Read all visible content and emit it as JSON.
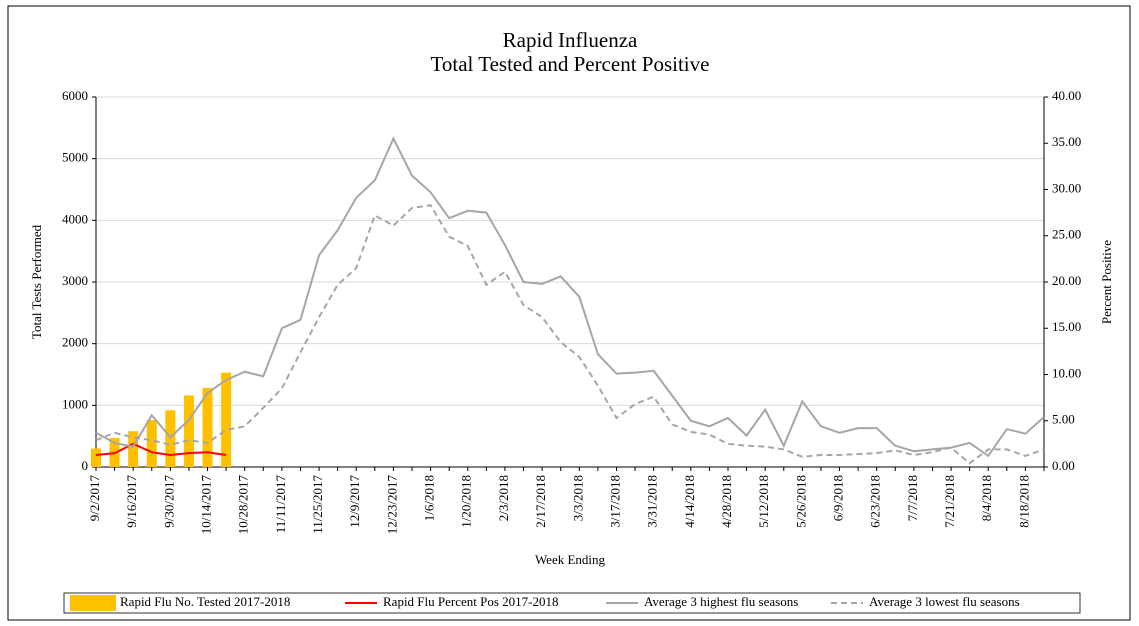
{
  "chart_data": {
    "type": "combo",
    "title": [
      "Rapid Influenza",
      "Total Tested and Percent Positive"
    ],
    "x_label": "Week Ending",
    "y_label": "Total Tests Performed",
    "y2_label": "Percent Positive",
    "categories": [
      "9/2/2017",
      null,
      "9/16/2017",
      null,
      "9/30/2017",
      null,
      "10/14/2017",
      null,
      "10/28/2017",
      null,
      "11/11/2017",
      null,
      "11/25/2017",
      null,
      "12/9/2017",
      null,
      "12/23/2017",
      null,
      "1/6/2018",
      null,
      "1/20/2018",
      null,
      "2/3/2018",
      null,
      "2/17/2018",
      null,
      "3/3/2018",
      null,
      "3/17/2018",
      null,
      "3/31/2018",
      null,
      "4/14/2018",
      null,
      "4/28/2018",
      null,
      "5/12/2018",
      null,
      "5/26/2018",
      null,
      "6/9/2018",
      null,
      "6/23/2018",
      null,
      "7/7/2018",
      null,
      "7/21/2018",
      null,
      "8/4/2018",
      null,
      "8/18/2018",
      null
    ],
    "ylim": [
      0,
      6000
    ],
    "yticks": [
      0,
      1000,
      2000,
      3000,
      4000,
      5000,
      6000
    ],
    "y2lim": [
      0,
      40
    ],
    "y2ticks": [
      {
        "value": 0,
        "label": "0.00"
      },
      {
        "value": 5,
        "label": "5.00"
      },
      {
        "value": 10,
        "label": "10.00"
      },
      {
        "value": 15,
        "label": "15.00"
      },
      {
        "value": 20,
        "label": "20.00"
      },
      {
        "value": 25,
        "label": "25.00"
      },
      {
        "value": 30,
        "label": "30.00"
      },
      {
        "value": 35,
        "label": "35.00"
      },
      {
        "value": 40,
        "label": "40.00"
      }
    ],
    "grid": true,
    "series": [
      {
        "name": "Rapid Flu No. Tested 2017-2018",
        "type": "bar",
        "color": "#FFC000",
        "axis": "y",
        "values": [
          300,
          470,
          580,
          760,
          920,
          1160,
          1280,
          1530,
          null,
          null,
          null,
          null,
          null,
          null,
          null,
          null,
          null,
          null,
          null,
          null,
          null,
          null,
          null,
          null,
          null,
          null,
          null,
          null,
          null,
          null,
          null,
          null,
          null,
          null,
          null,
          null,
          null,
          null,
          null,
          null,
          null,
          null,
          null,
          null,
          null,
          null,
          null,
          null,
          null,
          null,
          null,
          null
        ]
      },
      {
        "name": "Rapid Flu Percent Pos 2017-2018",
        "type": "line",
        "color": "#FF0000",
        "axis": "y2",
        "values": [
          1.3,
          1.5,
          2.5,
          1.6,
          1.3,
          1.5,
          1.6,
          1.3,
          null,
          null,
          null,
          null,
          null,
          null,
          null,
          null,
          null,
          null,
          null,
          null,
          null,
          null,
          null,
          null,
          null,
          null,
          null,
          null,
          null,
          null,
          null,
          null,
          null,
          null,
          null,
          null,
          null,
          null,
          null,
          null,
          null,
          null,
          null,
          null,
          null,
          null,
          null,
          null,
          null,
          null,
          null,
          null
        ]
      },
      {
        "name": "Average 3 highest flu seasons",
        "type": "line",
        "color": "#A6A6A6",
        "axis": "y2",
        "values": [
          3.7,
          2.6,
          2.2,
          5.6,
          3.2,
          5.1,
          8.0,
          9.4,
          10.3,
          9.8,
          15.0,
          15.9,
          22.9,
          25.6,
          29.1,
          31.0,
          35.5,
          31.5,
          29.7,
          26.9,
          27.7,
          27.5,
          24.0,
          20.0,
          19.8,
          20.6,
          18.4,
          12.2,
          10.1,
          10.2,
          10.4,
          7.7,
          5.0,
          4.4,
          5.3,
          3.4,
          6.2,
          2.3,
          7.1,
          4.4,
          3.7,
          4.2,
          4.2,
          2.3,
          1.7,
          1.9,
          2.1,
          2.6,
          1.2,
          4.1,
          3.6,
          5.4
        ]
      },
      {
        "name": "Average 3 lowest flu seasons",
        "type": "line",
        "dash": true,
        "color": "#A6A6A6",
        "axis": "y2",
        "values": [
          2.9,
          3.7,
          3.2,
          2.9,
          2.4,
          2.9,
          2.6,
          4.0,
          4.4,
          6.4,
          8.5,
          12.4,
          16.2,
          19.7,
          21.5,
          27.2,
          26.1,
          28.0,
          28.3,
          24.9,
          23.9,
          19.7,
          21.1,
          17.5,
          16.2,
          13.5,
          11.9,
          8.8,
          5.3,
          6.8,
          7.6,
          4.6,
          3.8,
          3.5,
          2.5,
          2.3,
          2.2,
          1.9,
          1.1,
          1.3,
          1.3,
          1.4,
          1.5,
          1.8,
          1.3,
          1.6,
          2.1,
          0.4,
          1.9,
          1.9,
          1.2,
          1.9
        ]
      }
    ]
  }
}
